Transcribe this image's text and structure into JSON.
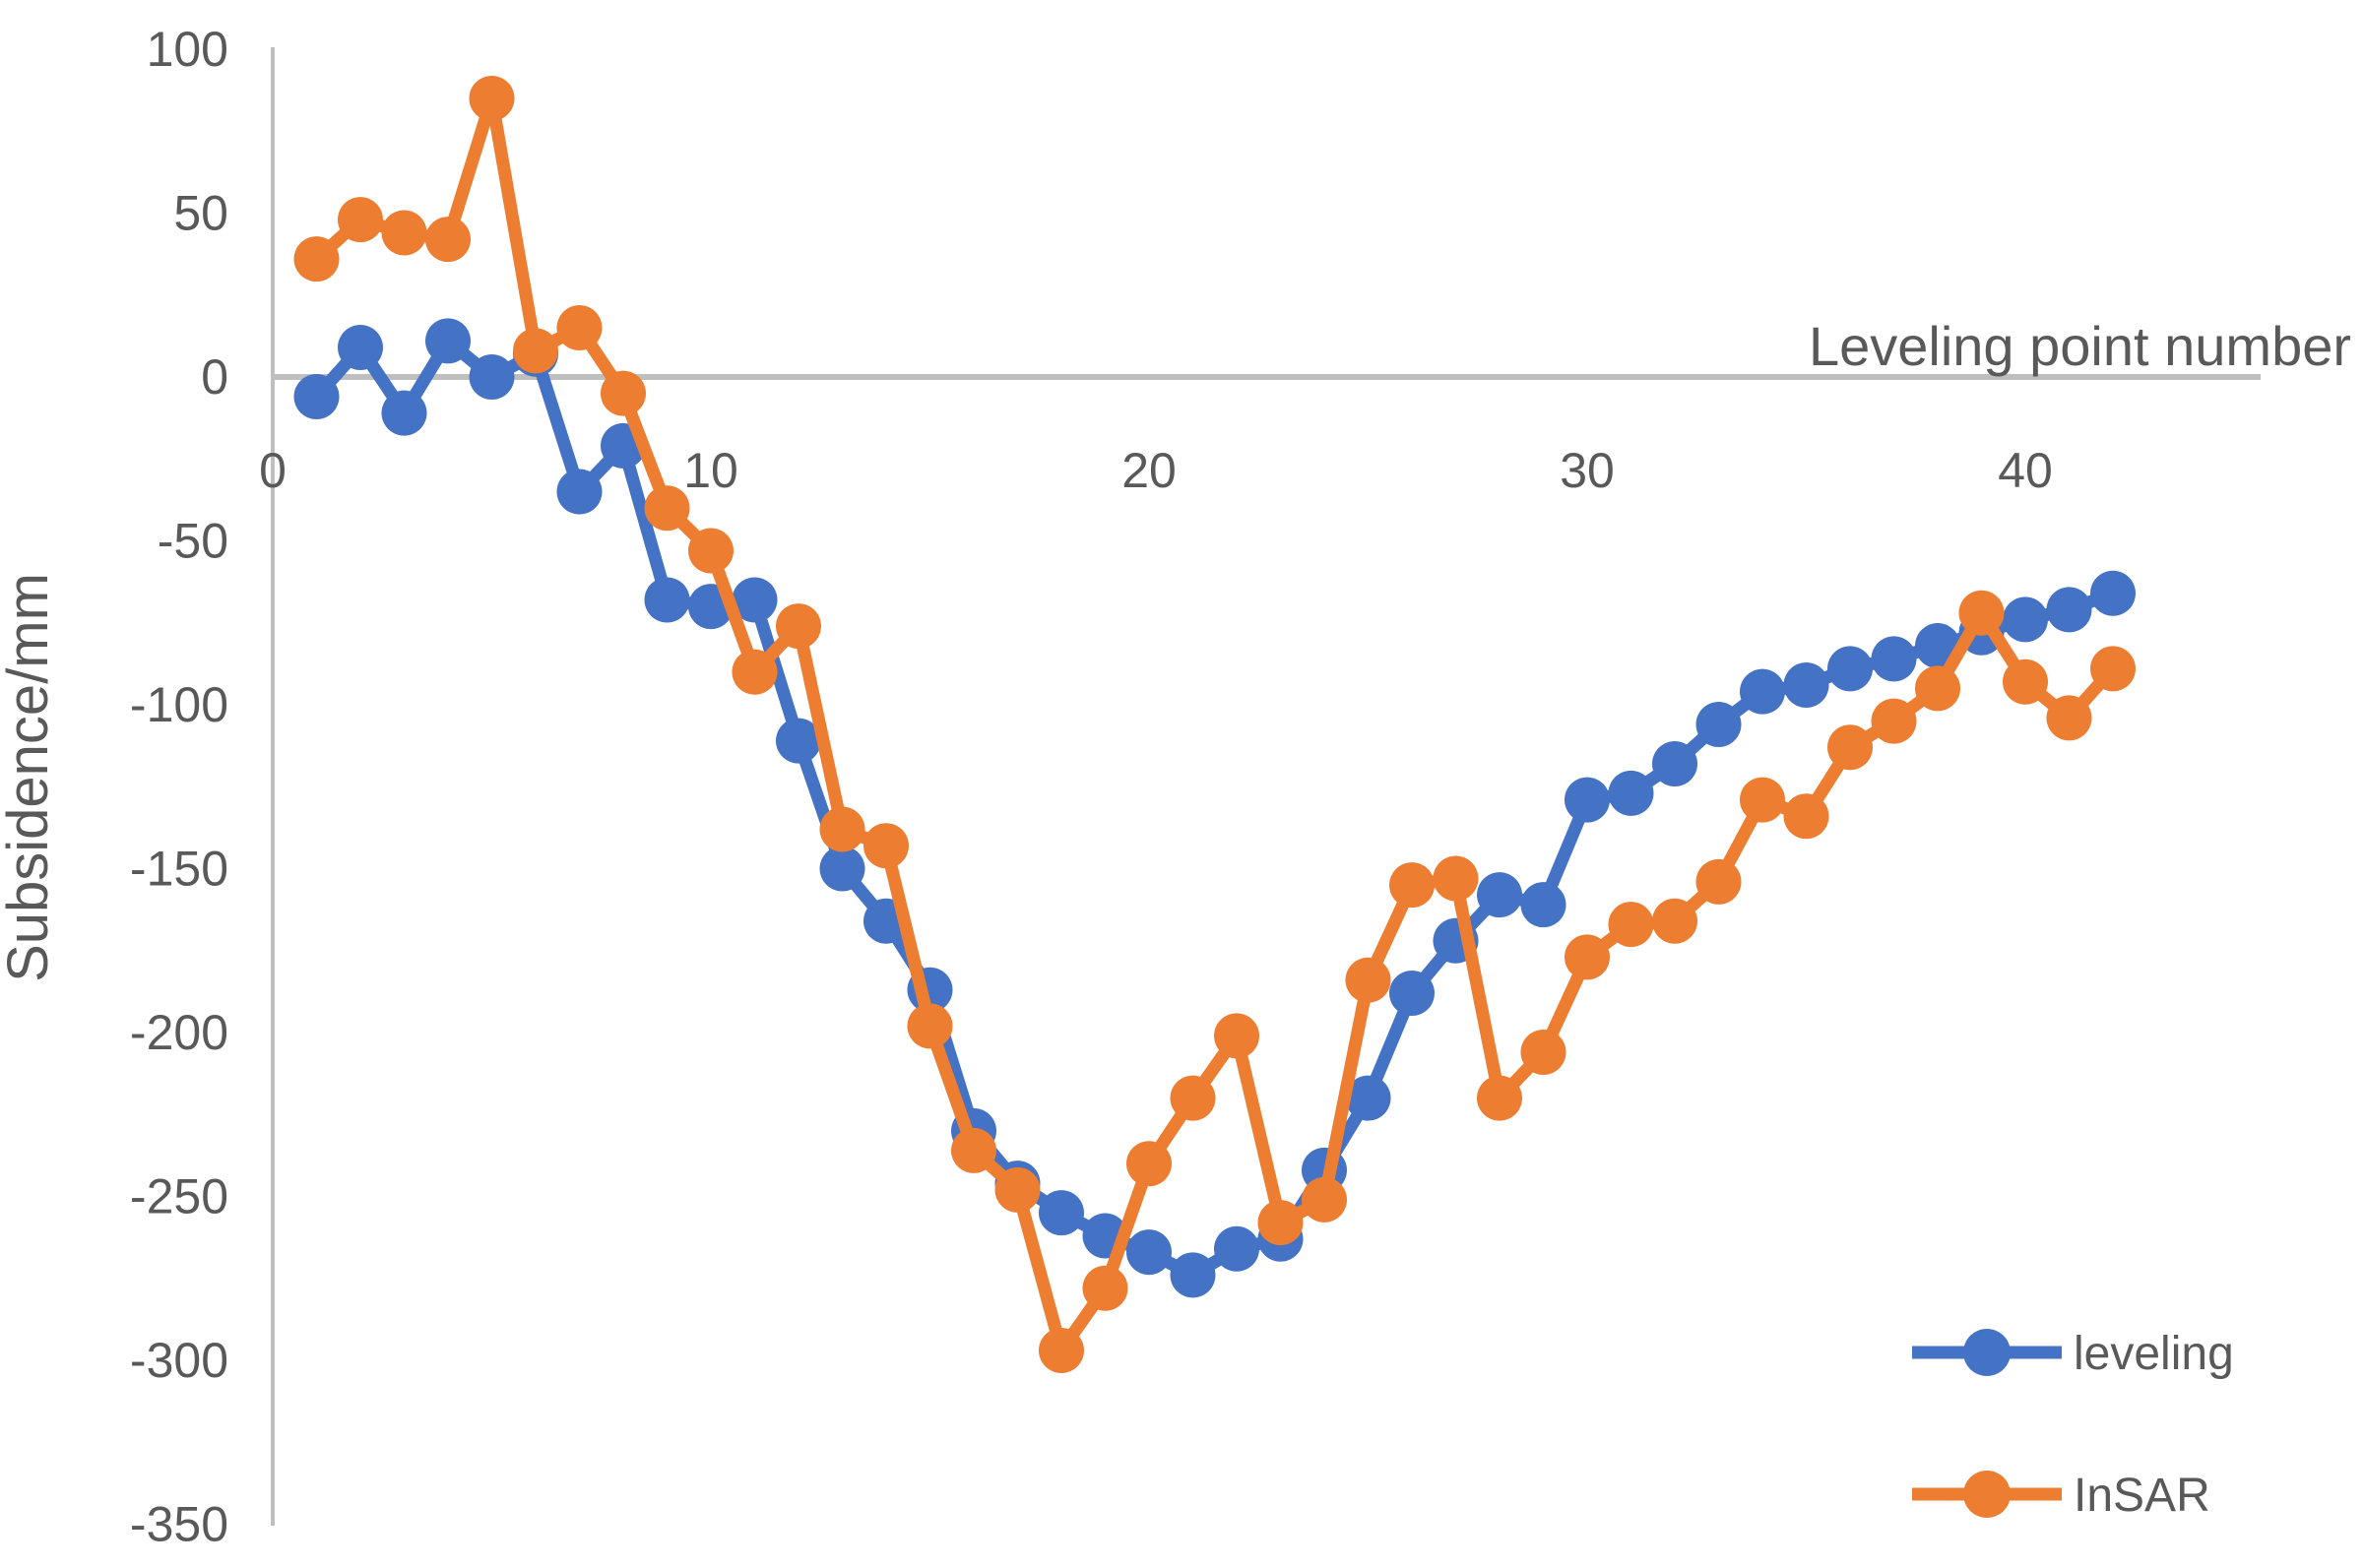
{
  "chart": {
    "x_axis_title": "Leveling point number",
    "y_axis_title": "Subsidence/mm",
    "axis_color": "#BFBFBF",
    "label_color": "#595959"
  },
  "chart_data": {
    "type": "line",
    "title": "",
    "xlabel": "Leveling point number",
    "ylabel": "Subsidence/mm",
    "xlim": [
      0,
      47
    ],
    "ylim": [
      -350,
      100
    ],
    "grid": false,
    "legend_position": "bottom-right",
    "x_ticks": [
      0,
      10,
      20,
      30,
      40
    ],
    "y_ticks": [
      100,
      50,
      0,
      -50,
      -100,
      -150,
      -200,
      -250,
      -300,
      -350
    ],
    "x": [
      1,
      2,
      3,
      4,
      5,
      6,
      7,
      8,
      9,
      10,
      11,
      12,
      13,
      14,
      15,
      16,
      17,
      18,
      19,
      20,
      21,
      22,
      23,
      24,
      25,
      26,
      27,
      28,
      29,
      30,
      31,
      32,
      33,
      34,
      35,
      36,
      37,
      38,
      39,
      40,
      41,
      42
    ],
    "series": [
      {
        "name": "leveling",
        "color": "#4472C4",
        "values": [
          -6,
          9,
          -11,
          11,
          0,
          7,
          -35,
          -21,
          -68,
          -70,
          -68,
          -111,
          -150,
          -166,
          -187,
          -230,
          -246,
          -255,
          -262,
          -267,
          -274,
          -266,
          -263,
          -242,
          -220,
          -188,
          -172,
          -158,
          -161,
          -129,
          -127,
          -118,
          -106,
          -96,
          -94,
          -89,
          -86,
          -82,
          -78,
          -74,
          -71,
          -66
        ]
      },
      {
        "name": "InSAR",
        "color": "#ED7D31",
        "values": [
          36,
          48,
          44,
          42,
          85,
          8,
          15,
          -5,
          -40,
          -53,
          -90,
          -76,
          -138,
          -143,
          -198,
          -236,
          -248,
          -297,
          -278,
          -240,
          -220,
          -201,
          -258,
          -251,
          -184,
          -155,
          -153,
          -220,
          -206,
          -177,
          -167,
          -166,
          -154,
          -129,
          -134,
          -113,
          -105,
          -95,
          -72,
          -93,
          -104,
          -89
        ]
      }
    ]
  }
}
